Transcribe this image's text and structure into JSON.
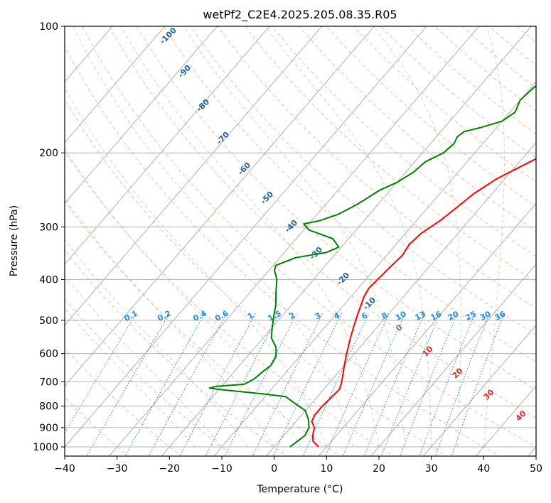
{
  "chart_data": {
    "type": "line",
    "title": "wetPf2_C2E4.2025.205.08.35.R05",
    "xlabel": "Temperature (°C)",
    "ylabel": "Pressure (hPa)",
    "xlim": [
      -40,
      50
    ],
    "ylim": [
      1050,
      100
    ],
    "y_scale": "log",
    "grid": true,
    "x_ticks": [
      -40,
      -30,
      -20,
      -10,
      0,
      10,
      20,
      30,
      40,
      50
    ],
    "y_ticks": [
      1000,
      900,
      800,
      700,
      600,
      500,
      400,
      300,
      200,
      100
    ],
    "background_lines": {
      "dry_adiabat_labels": [
        "-100",
        "-90",
        "-80",
        "-70",
        "-60",
        "-50",
        "-40",
        "-30",
        "-20",
        "-10",
        "0",
        "10",
        "20",
        "30",
        "40"
      ],
      "mixing_ratio_labels": [
        "0.1",
        "0.2",
        "0.4",
        "0.6",
        "1",
        "1.5",
        "2",
        "3",
        "4",
        "6",
        "8",
        "10",
        "13",
        "16",
        "20",
        "25",
        "30",
        "36"
      ]
    },
    "series": [
      {
        "color": "#ff0000",
        "points": [
          [
            8.5,
            1000
          ],
          [
            6.5,
            970
          ],
          [
            5.5,
            940
          ],
          [
            4.5,
            900
          ],
          [
            3.0,
            870
          ],
          [
            2.5,
            840
          ],
          [
            2.5,
            800
          ],
          [
            2.8,
            760
          ],
          [
            3.0,
            730
          ],
          [
            2.5,
            710
          ],
          [
            1.5,
            680
          ],
          [
            0,
            640
          ],
          [
            -1.5,
            600
          ],
          [
            -3.0,
            560
          ],
          [
            -4.5,
            520
          ],
          [
            -6.0,
            480
          ],
          [
            -7.5,
            440
          ],
          [
            -8.0,
            420
          ],
          [
            -7.5,
            380
          ],
          [
            -7.0,
            350
          ],
          [
            -7.5,
            330
          ],
          [
            -7.0,
            310
          ],
          [
            -5.5,
            290
          ],
          [
            -4.5,
            270
          ],
          [
            -3.5,
            250
          ],
          [
            -1.5,
            230
          ],
          [
            2.0,
            210
          ],
          [
            6.0,
            190
          ],
          [
            9.0,
            175
          ],
          [
            11.0,
            160
          ],
          [
            14.0,
            145
          ],
          [
            18.0,
            130
          ],
          [
            21.5,
            117
          ],
          [
            25.0,
            106
          ],
          [
            26.5,
            100
          ]
        ]
      },
      {
        "color": "#008000",
        "points": [
          [
            3.0,
            1000
          ],
          [
            3.5,
            970
          ],
          [
            4.0,
            940
          ],
          [
            3.5,
            900
          ],
          [
            2.0,
            860
          ],
          [
            0,
            820
          ],
          [
            -3.0,
            790
          ],
          [
            -5.0,
            770
          ],
          [
            -6.0,
            760
          ],
          [
            -10.0,
            750
          ],
          [
            -20.0,
            730
          ],
          [
            -22.0,
            725
          ],
          [
            -21.0,
            718
          ],
          [
            -16.0,
            710
          ],
          [
            -15.0,
            690
          ],
          [
            -14.5,
            660
          ],
          [
            -14.0,
            640
          ],
          [
            -14.5,
            610
          ],
          [
            -16.0,
            580
          ],
          [
            -18.5,
            550
          ],
          [
            -20.0,
            520
          ],
          [
            -21.5,
            490
          ],
          [
            -23.0,
            460
          ],
          [
            -25.0,
            430
          ],
          [
            -27.0,
            400
          ],
          [
            -29.0,
            380
          ],
          [
            -29.5,
            370
          ],
          [
            -27.0,
            355
          ],
          [
            -22.0,
            345
          ],
          [
            -20.5,
            335
          ],
          [
            -23.0,
            320
          ],
          [
            -29.0,
            305
          ],
          [
            -31.0,
            295
          ],
          [
            -28.5,
            290
          ],
          [
            -26.0,
            280
          ],
          [
            -24.0,
            265
          ],
          [
            -22.0,
            245
          ],
          [
            -20.0,
            235
          ],
          [
            -18.5,
            222
          ],
          [
            -18.0,
            210
          ],
          [
            -16.0,
            200
          ],
          [
            -15.5,
            190
          ],
          [
            -16.0,
            183
          ],
          [
            -15.5,
            178
          ],
          [
            -13.0,
            174
          ],
          [
            -10.0,
            168
          ],
          [
            -9.0,
            160
          ],
          [
            -10.0,
            150
          ],
          [
            -9.5,
            140
          ],
          [
            -8.0,
            130
          ],
          [
            -6.0,
            120
          ],
          [
            -4.0,
            112
          ],
          [
            0,
            104
          ],
          [
            1.5,
            100
          ]
        ]
      }
    ]
  }
}
